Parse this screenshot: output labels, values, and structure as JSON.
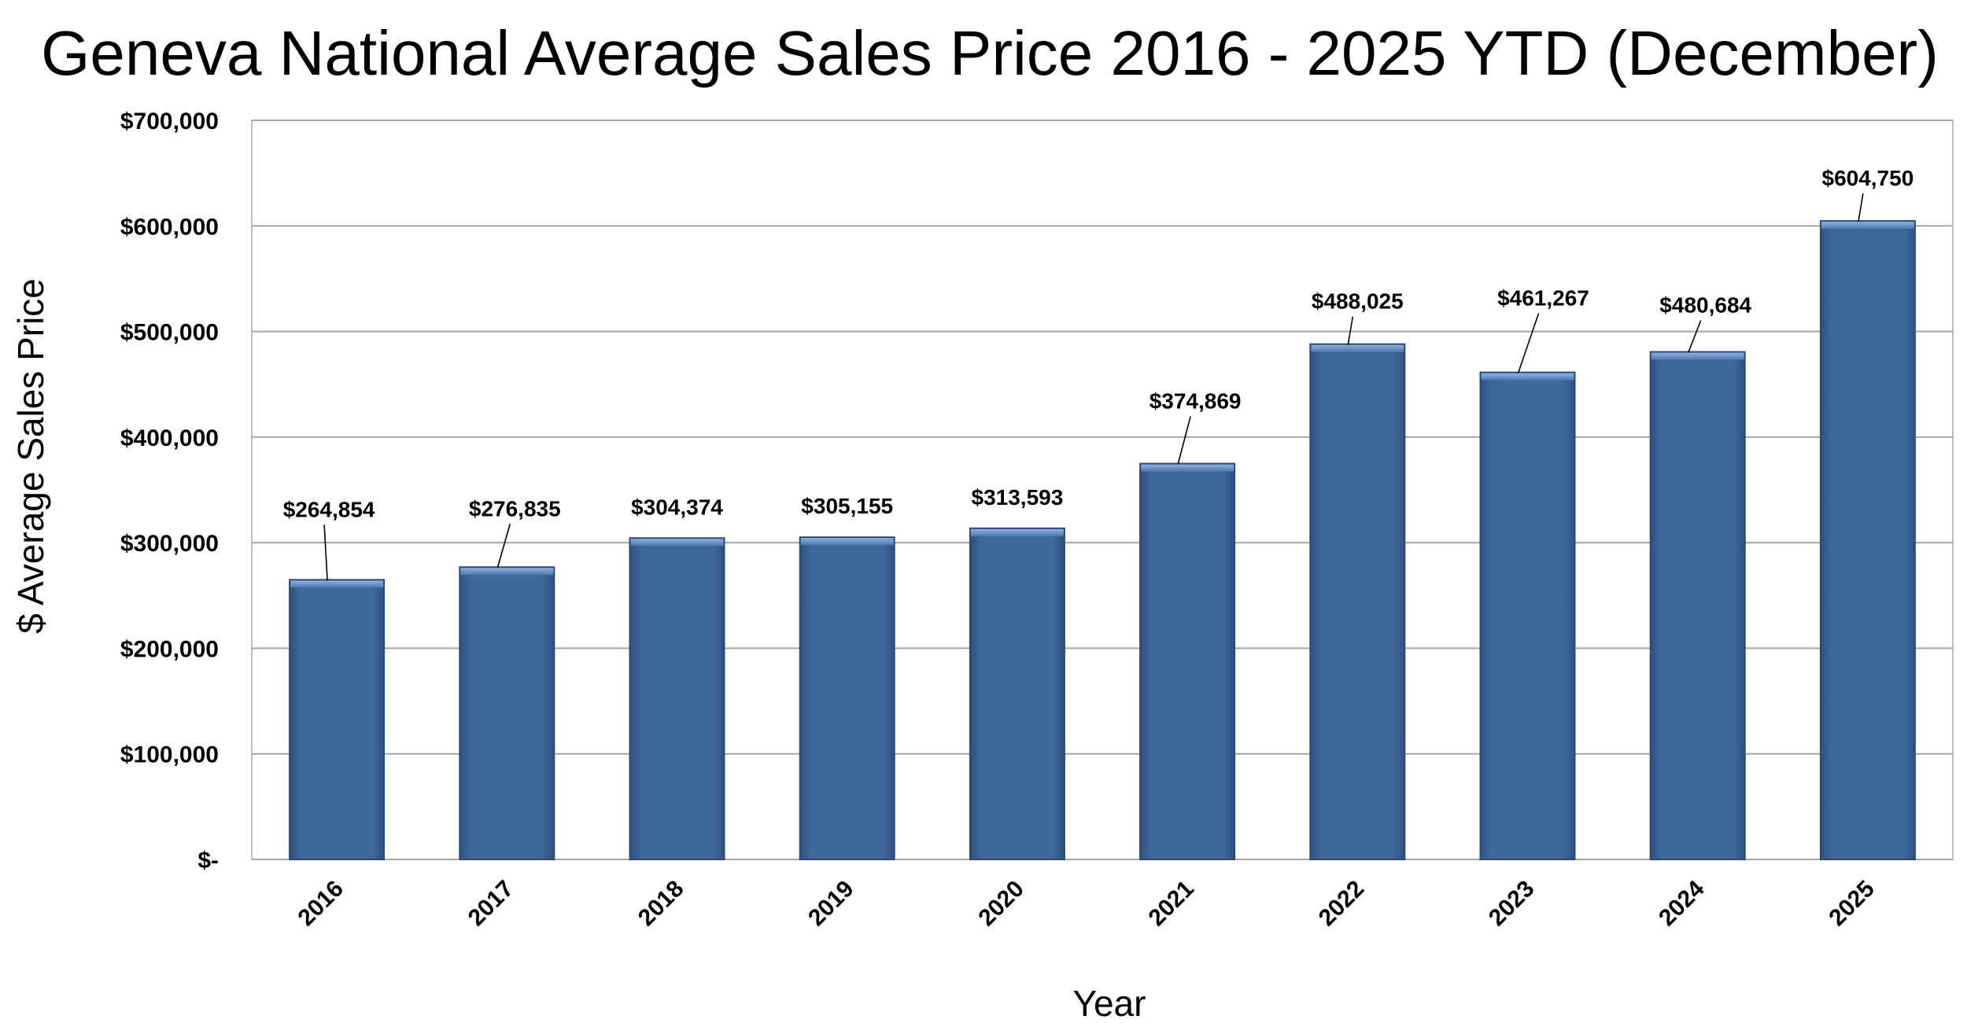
{
  "chart_data": {
    "type": "bar",
    "title": "Geneva National Average Sales Price 2016 - 2025 YTD (December)",
    "xlabel": "Year",
    "ylabel": "$ Average Sales Price",
    "categories": [
      "2016",
      "2017",
      "2018",
      "2019",
      "2020",
      "2021",
      "2022",
      "2023",
      "2024",
      "2025"
    ],
    "values": [
      264854,
      276835,
      304374,
      305155,
      313593,
      374869,
      488025,
      461267,
      480684,
      604750
    ],
    "data_labels": [
      "$264,854",
      "$276,835",
      "$304,374",
      "$305,155",
      "$313,593",
      "$374,869",
      "$488,025",
      "$461,267",
      "$480,684",
      "$604,750"
    ],
    "ylim": [
      0,
      700000
    ],
    "yticks": [
      0,
      100000,
      200000,
      300000,
      400000,
      500000,
      600000,
      700000
    ],
    "ytick_labels": [
      "$-",
      "$100,000",
      "$200,000",
      "$300,000",
      "$400,000",
      "$500,000",
      "$600,000",
      "$700,000"
    ],
    "grid": true,
    "legend": "none",
    "colors": {
      "bar": "#3f679a",
      "bar_edge": "#2b4a72",
      "gridline": "#a6a6a6",
      "plot_border": "#bfbfbf"
    }
  }
}
